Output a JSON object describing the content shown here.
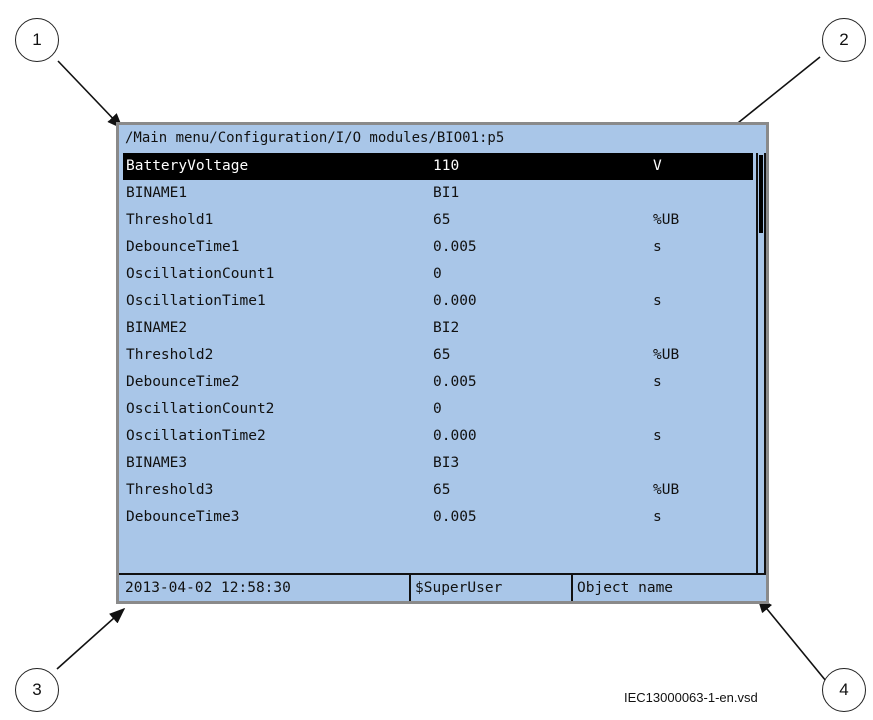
{
  "screen": {
    "path": "/Main menu/Configuration/I/O modules/BIO01:p5",
    "rows": [
      {
        "name": "BatteryVoltage",
        "value": "110",
        "unit": "V",
        "selected": true
      },
      {
        "name": "BINAME1",
        "value": "BI1",
        "unit": ""
      },
      {
        "name": "Threshold1",
        "value": "65",
        "unit": "%UB"
      },
      {
        "name": "DebounceTime1",
        "value": "0.005",
        "unit": "s"
      },
      {
        "name": "OscillationCount1",
        "value": "0",
        "unit": ""
      },
      {
        "name": "OscillationTime1",
        "value": "0.000",
        "unit": "s"
      },
      {
        "name": "BINAME2",
        "value": "BI2",
        "unit": ""
      },
      {
        "name": "Threshold2",
        "value": "65",
        "unit": "%UB"
      },
      {
        "name": "DebounceTime2",
        "value": "0.005",
        "unit": "s"
      },
      {
        "name": "OscillationCount2",
        "value": "0",
        "unit": ""
      },
      {
        "name": "OscillationTime2",
        "value": "0.000",
        "unit": "s"
      },
      {
        "name": "BINAME3",
        "value": "BI3",
        "unit": ""
      },
      {
        "name": "Threshold3",
        "value": "65",
        "unit": "%UB"
      },
      {
        "name": "DebounceTime3",
        "value": "0.005",
        "unit": "s"
      }
    ],
    "status": {
      "datetime": "2013-04-02 12:58:30",
      "user": "$SuperUser",
      "object": "Object name"
    }
  },
  "callouts": [
    "1",
    "2",
    "3",
    "4"
  ],
  "figure_ref": "IEC13000063-1-en.vsd",
  "colors": {
    "screen": "#a9c6e8",
    "selected_bg": "#000000"
  }
}
